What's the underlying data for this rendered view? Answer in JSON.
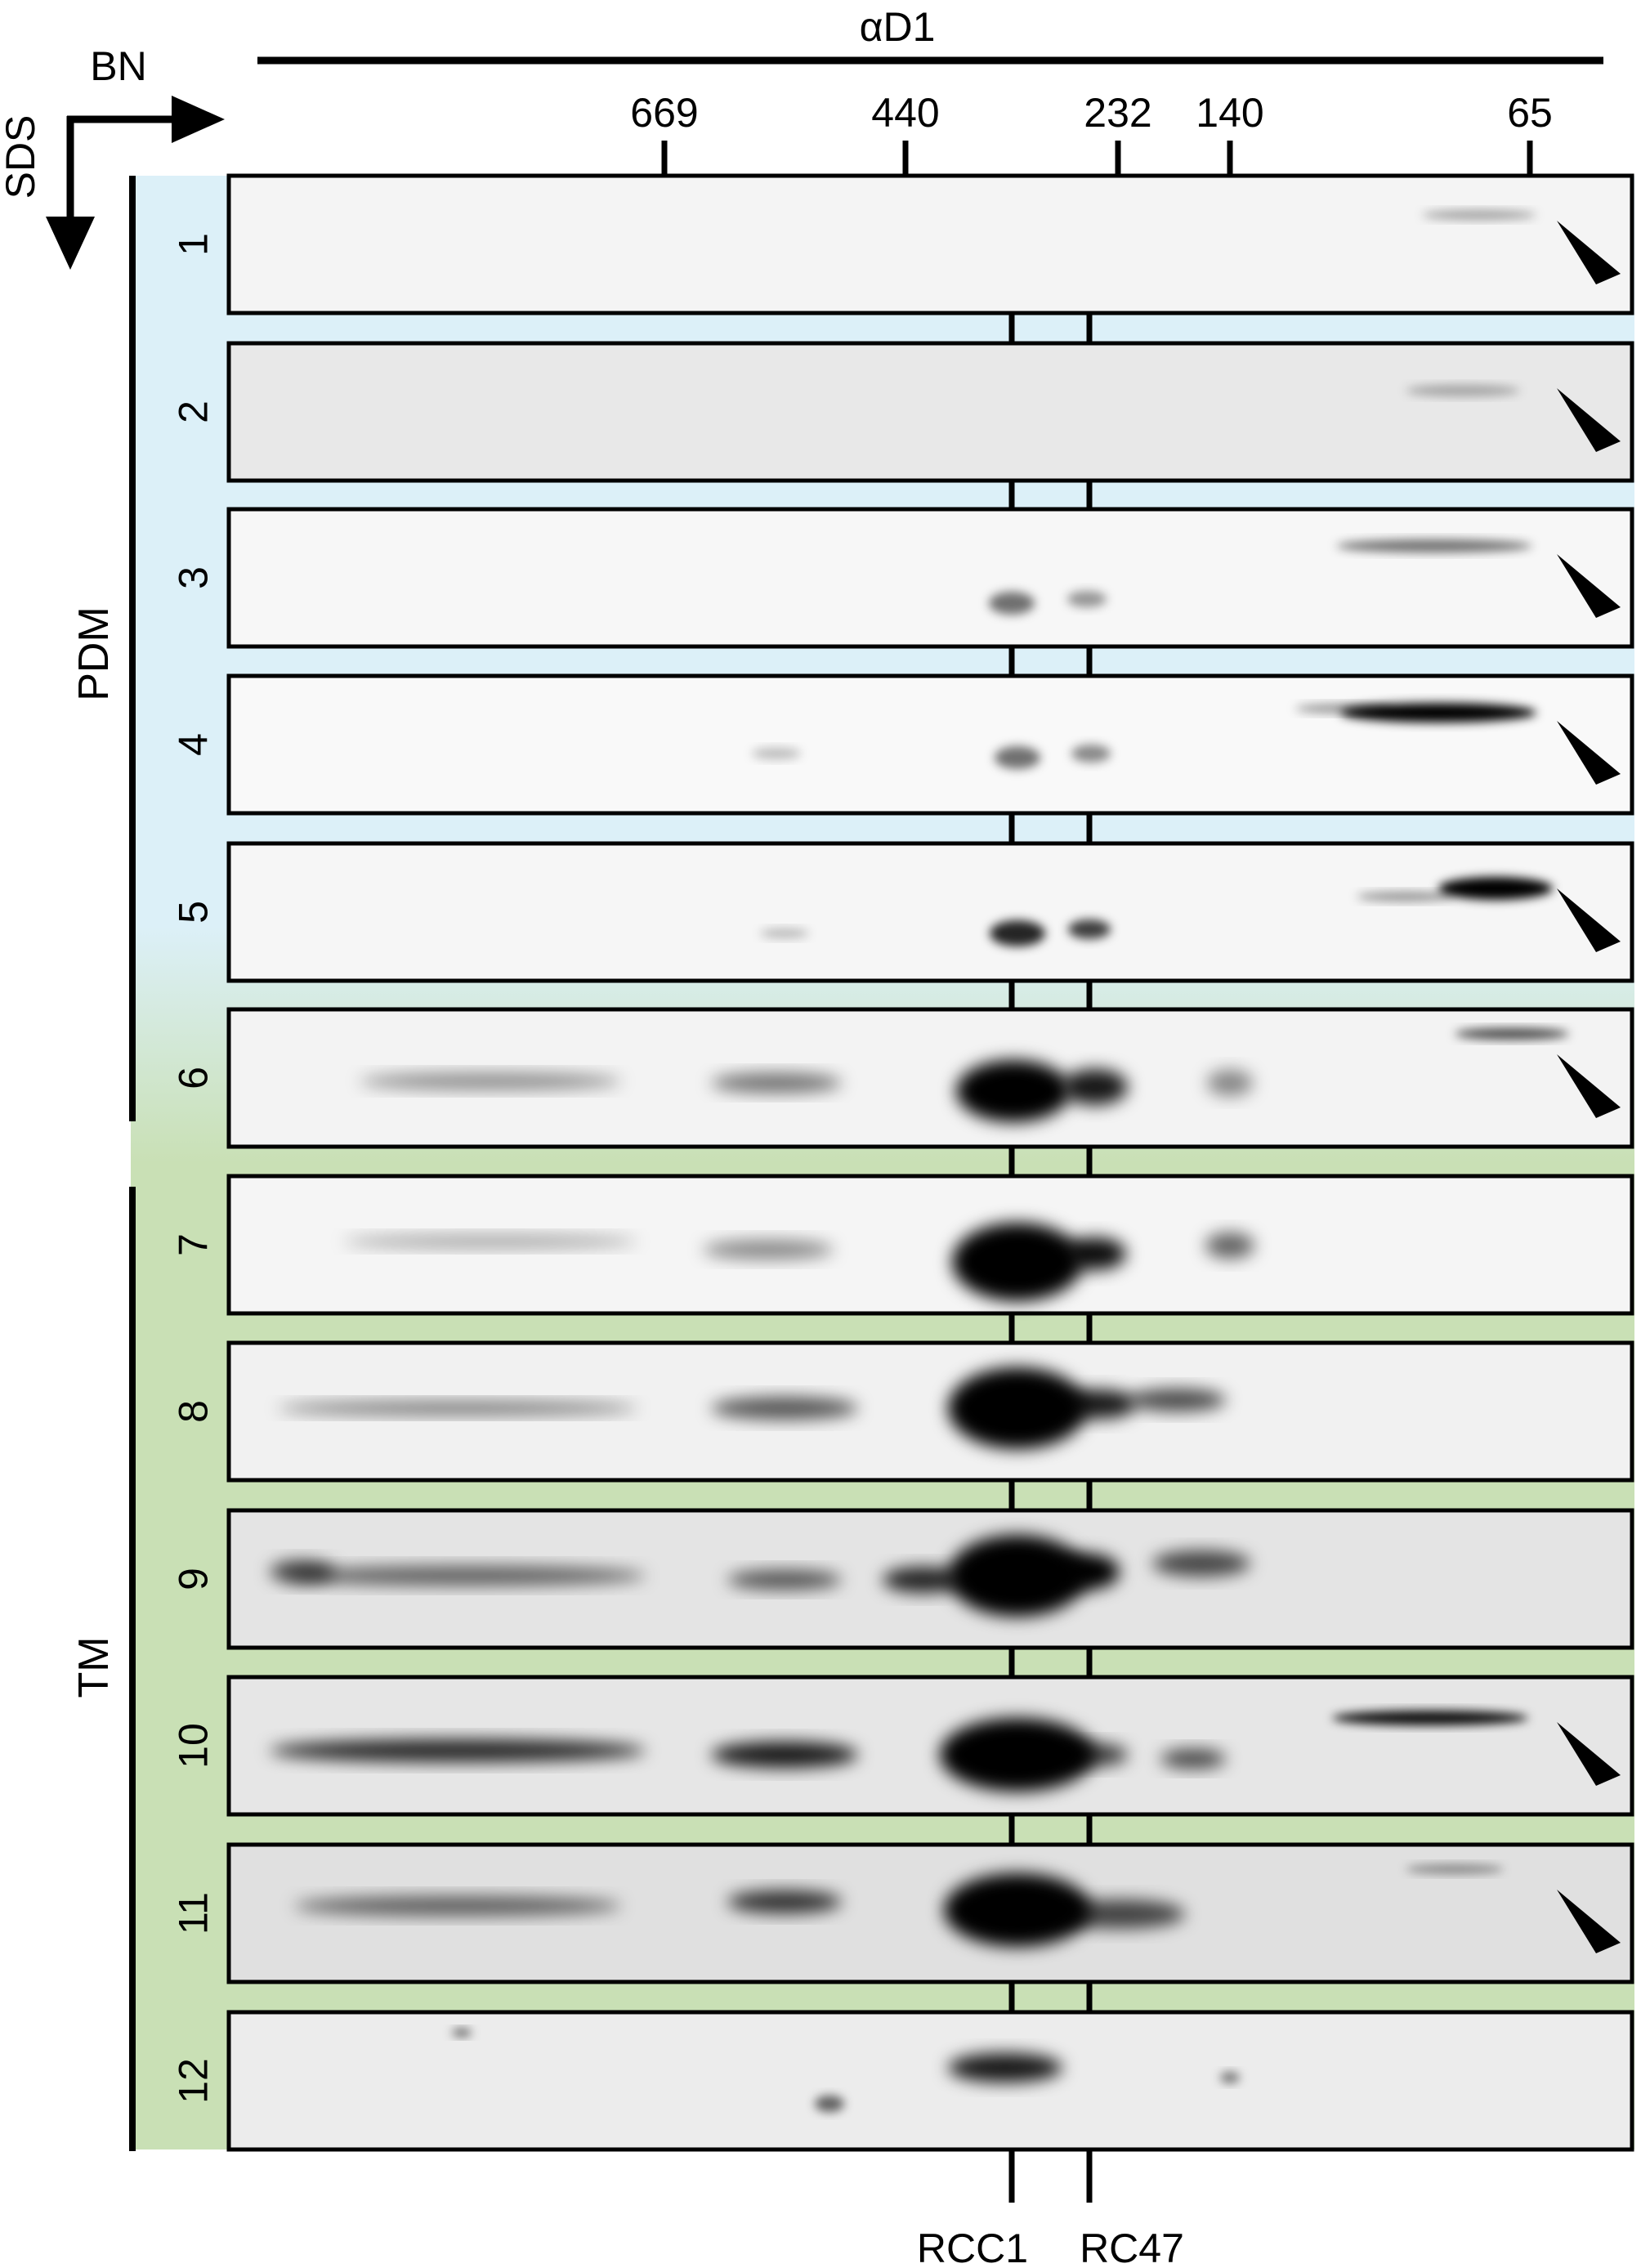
{
  "header": {
    "antibody_label": "αD1",
    "bn_label": "BN",
    "sds_label": "SDS"
  },
  "markers": [
    {
      "label": "669"
    },
    {
      "label": "440"
    },
    {
      "label": "232"
    },
    {
      "label": "140"
    },
    {
      "label": "65"
    }
  ],
  "groups": [
    {
      "label": "PDM",
      "color": "#dcf0f8"
    },
    {
      "label": "TM",
      "color": "#c9e0b5"
    }
  ],
  "panels": [
    {
      "label": "1",
      "bg": "#f4f4f4",
      "arrowhead": true
    },
    {
      "label": "2",
      "bg": "#e8e8e8",
      "arrowhead": true
    },
    {
      "label": "3",
      "bg": "#f7f7f7",
      "arrowhead": true
    },
    {
      "label": "4",
      "bg": "#f9f9f9",
      "arrowhead": true
    },
    {
      "label": "5",
      "bg": "#f6f6f6",
      "arrowhead": true
    },
    {
      "label": "6",
      "bg": "#f3f3f3",
      "arrowhead": true
    },
    {
      "label": "7",
      "bg": "#f5f5f5",
      "arrowhead": false
    },
    {
      "label": "8",
      "bg": "#f1f1f1",
      "arrowhead": false
    },
    {
      "label": "9",
      "bg": "#e4e4e4",
      "arrowhead": false
    },
    {
      "label": "10",
      "bg": "#e6e6e6",
      "arrowhead": true
    },
    {
      "label": "11",
      "bg": "#e0e0e0",
      "arrowhead": true
    },
    {
      "label": "12",
      "bg": "#ececec",
      "arrowhead": false
    }
  ],
  "complexes": [
    {
      "label": "RCC1"
    },
    {
      "label": "RC47"
    }
  ]
}
